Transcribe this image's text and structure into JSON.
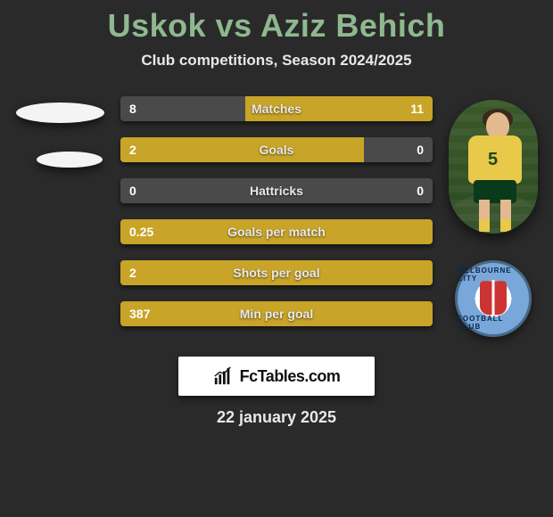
{
  "title": "Uskok vs Aziz Behich",
  "subtitle": "Club competitions, Season 2024/2025",
  "date": "22 january 2025",
  "brand": "FcTables.com",
  "colors": {
    "title": "#8fb88f",
    "left_bar": "#4a4a4a",
    "right_bar": "#b09020",
    "right_bar_bright": "#c8a428",
    "background": "#2a2a2a"
  },
  "right_player": {
    "jersey_number": "5",
    "club_text_top": "MELBOURNE CITY",
    "club_text_bottom": "FOOTBALL CLUB"
  },
  "stats": [
    {
      "label": "Matches",
      "left_text": "8",
      "right_text": "11",
      "left_pct": 40,
      "right_pct": 60
    },
    {
      "label": "Goals",
      "left_text": "2",
      "right_text": "0",
      "left_pct": 78,
      "right_pct": 22
    },
    {
      "label": "Hattricks",
      "left_text": "0",
      "right_text": "0",
      "left_pct": 50,
      "right_pct": 50
    },
    {
      "label": "Goals per match",
      "left_text": "0.25",
      "right_text": "",
      "left_pct": 100,
      "right_pct": 0
    },
    {
      "label": "Shots per goal",
      "left_text": "2",
      "right_text": "",
      "left_pct": 100,
      "right_pct": 0
    },
    {
      "label": "Min per goal",
      "left_text": "387",
      "right_text": "",
      "left_pct": 100,
      "right_pct": 0
    }
  ]
}
